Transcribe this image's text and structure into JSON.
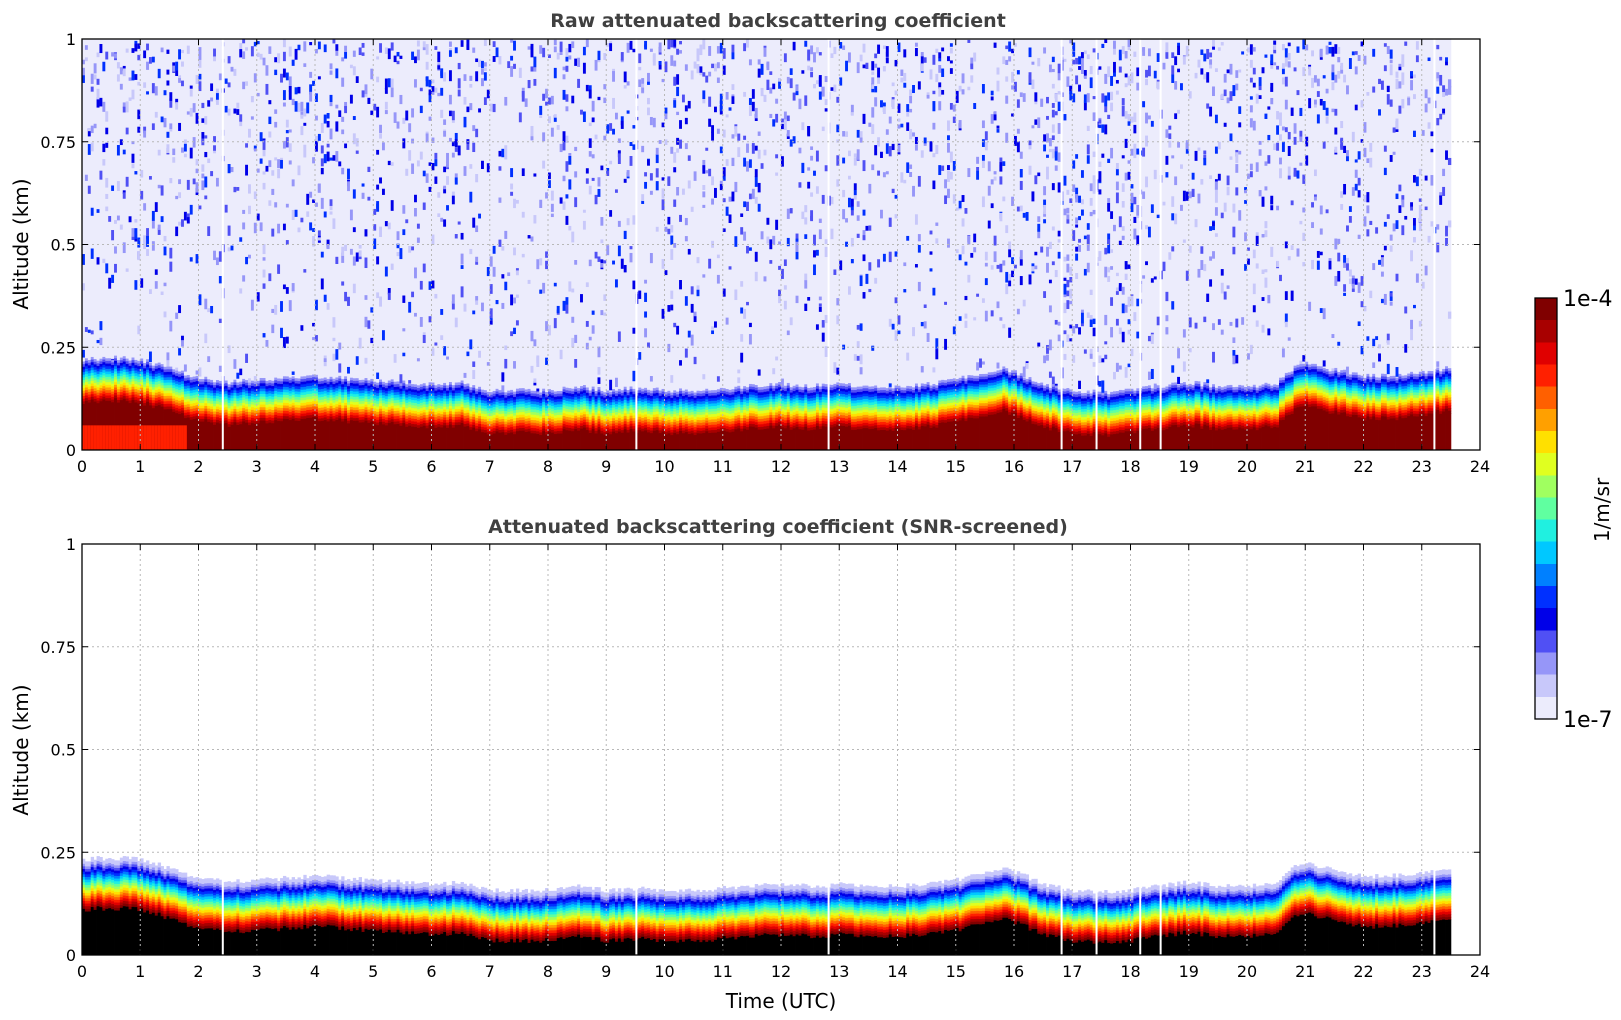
{
  "chart_data": [
    {
      "type": "heatmap",
      "title": "Raw attenuated backscattering coefficient",
      "xlabel": "",
      "ylabel": "Altitude (km)",
      "xlim": [
        0,
        24
      ],
      "ylim": [
        0,
        1
      ],
      "xticks": [
        0,
        1,
        2,
        3,
        4,
        5,
        6,
        7,
        8,
        9,
        10,
        11,
        12,
        13,
        14,
        15,
        16,
        17,
        18,
        19,
        20,
        21,
        22,
        23,
        24
      ],
      "yticks": [
        0,
        0.25,
        0.5,
        0.75,
        1
      ],
      "ytick_labels": [
        "0",
        "0.25",
        "0.5",
        "0.75",
        "1"
      ],
      "data_end_time": 23.5,
      "noise_above_layer": true,
      "grid": true
    },
    {
      "type": "heatmap",
      "title": "Attenuated backscattering coefficient (SNR-screened)",
      "xlabel": "Time (UTC)",
      "ylabel": "Altitude (km)",
      "xlim": [
        0,
        24
      ],
      "ylim": [
        0,
        1
      ],
      "xticks": [
        0,
        1,
        2,
        3,
        4,
        5,
        6,
        7,
        8,
        9,
        10,
        11,
        12,
        13,
        14,
        15,
        16,
        17,
        18,
        19,
        20,
        21,
        22,
        23,
        24
      ],
      "yticks": [
        0,
        0.25,
        0.5,
        0.75,
        1
      ],
      "ytick_labels": [
        "0",
        "0.25",
        "0.5",
        "0.75",
        "1"
      ],
      "data_end_time": 23.5,
      "noise_above_layer": false,
      "grid": true
    }
  ],
  "layer_top_km": {
    "time": [
      0,
      0.5,
      1,
      1.5,
      2,
      2.5,
      3,
      3.5,
      4,
      4.5,
      5,
      5.5,
      6,
      6.5,
      7,
      7.5,
      8,
      8.5,
      9,
      9.5,
      10,
      10.5,
      11,
      11.5,
      12,
      12.5,
      13,
      13.5,
      14,
      14.5,
      15,
      15.5,
      15.8,
      16.2,
      16.5,
      17,
      17.5,
      18,
      18.5,
      19,
      19.5,
      20,
      20.5,
      20.8,
      21,
      21.5,
      22,
      22.5,
      23,
      23.5
    ],
    "altitude": [
      0.22,
      0.225,
      0.22,
      0.2,
      0.175,
      0.165,
      0.17,
      0.175,
      0.18,
      0.175,
      0.17,
      0.165,
      0.16,
      0.165,
      0.145,
      0.145,
      0.145,
      0.155,
      0.145,
      0.15,
      0.145,
      0.145,
      0.15,
      0.155,
      0.16,
      0.155,
      0.16,
      0.155,
      0.155,
      0.16,
      0.17,
      0.19,
      0.2,
      0.18,
      0.16,
      0.145,
      0.14,
      0.145,
      0.155,
      0.165,
      0.155,
      0.155,
      0.16,
      0.2,
      0.21,
      0.195,
      0.18,
      0.18,
      0.19,
      0.2
    ]
  },
  "data_gaps_time": [
    2.4,
    9.5,
    12.8,
    16.8,
    17.4,
    18.15,
    18.5,
    23.2
  ],
  "colorbar": {
    "label": "1/m/sr",
    "max_label": "1e-4",
    "min_label": "1e-7",
    "colors": [
      "#ececfc",
      "#c8c8fa",
      "#9696f8",
      "#5050f4",
      "#0000e8",
      "#0030ff",
      "#0080ff",
      "#00c8ff",
      "#20f0e0",
      "#60ffa0",
      "#a0ff60",
      "#e0ff20",
      "#ffe000",
      "#ffa000",
      "#ff6000",
      "#ff2000",
      "#e00000",
      "#a80000",
      "#800000"
    ]
  }
}
